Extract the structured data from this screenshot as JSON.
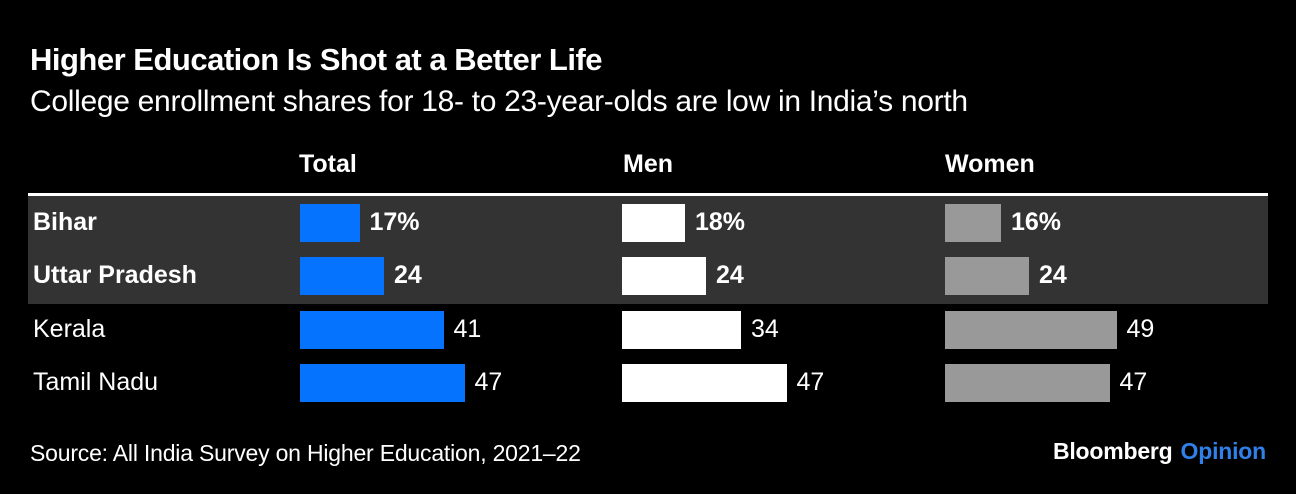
{
  "chart_data": {
    "type": "bar",
    "orientation": "horizontal",
    "title": "Higher Education Is Shot at a Better Life",
    "subtitle": "College enrollment shares for 18- to 23-year-olds are low in India’s north",
    "unit": "percent",
    "xlim": [
      0,
      50
    ],
    "grid": false,
    "legend_position": "column-headers-top",
    "categories": [
      "Bihar",
      "Uttar Pradesh",
      "Kerala",
      "Tamil Nadu"
    ],
    "highlighted_categories": [
      "Bihar",
      "Uttar Pradesh"
    ],
    "series": [
      {
        "name": "Total",
        "color": "#0673FF",
        "values": [
          17,
          24,
          41,
          47
        ],
        "display": [
          "17%",
          "24",
          "41",
          "47"
        ]
      },
      {
        "name": "Men",
        "color": "#FFFFFF",
        "values": [
          18,
          24,
          34,
          47
        ],
        "display": [
          "18%",
          "24",
          "34",
          "47"
        ]
      },
      {
        "name": "Women",
        "color": "#999999",
        "values": [
          16,
          24,
          49,
          47
        ],
        "display": [
          "16%",
          "24",
          "49",
          "47"
        ]
      }
    ]
  },
  "footer": {
    "source_label": "Source: All India Survey on Higher Education, 2021–22",
    "brand_name": "Bloomberg",
    "brand_edition": "Opinion"
  },
  "colors": {
    "background": "#000000",
    "highlight_row": "#333333",
    "header_rule": "#FFFFFF",
    "total_bar": "#0673FF",
    "men_bar": "#FFFFFF",
    "women_bar": "#999999",
    "brand_opinion_blue": "#2F80E8"
  }
}
